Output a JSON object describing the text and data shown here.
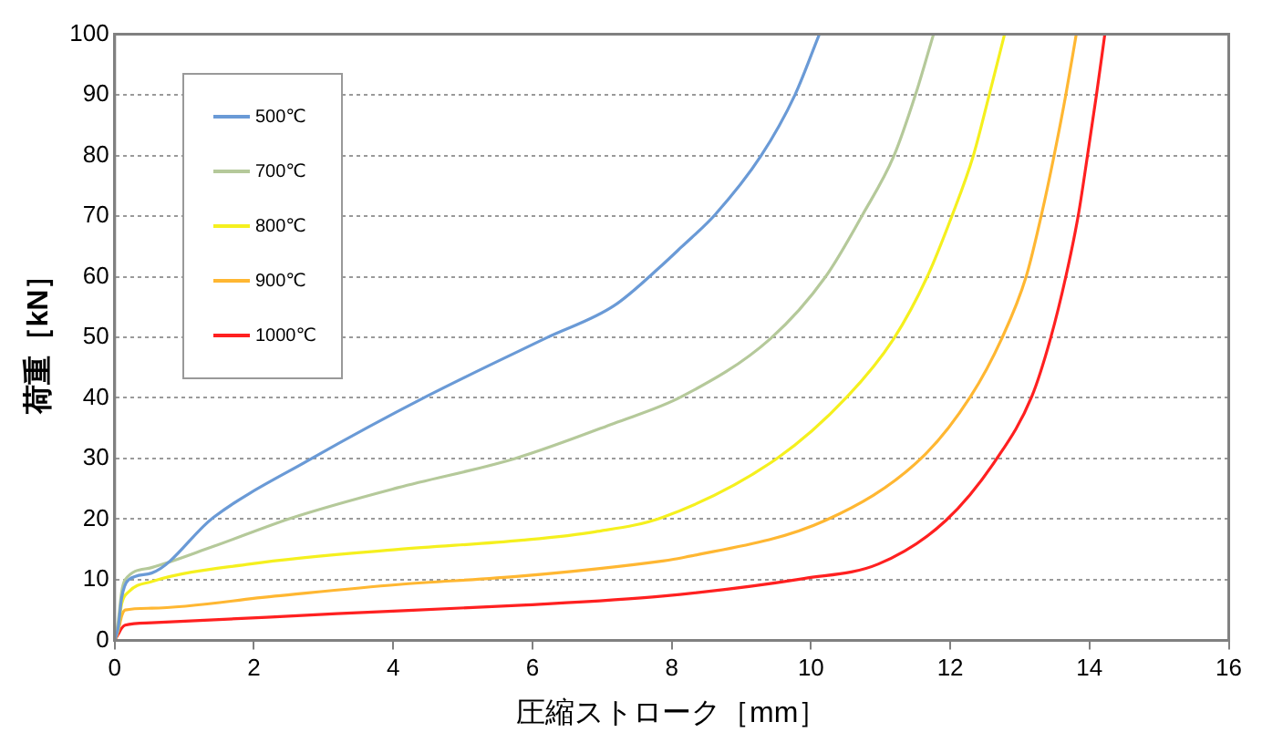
{
  "chart_data": {
    "type": "line",
    "xlabel": "圧縮ストローク［mm］",
    "ylabel": "荷重［kN］",
    "xlim": [
      0,
      16
    ],
    "xticks": [
      0,
      2,
      4,
      6,
      8,
      10,
      12,
      14,
      16
    ],
    "ylim": [
      0,
      100
    ],
    "yticks": [
      0,
      10,
      20,
      30,
      40,
      50,
      60,
      70,
      80,
      90,
      100
    ],
    "grid": "y",
    "legend": "top left",
    "series": [
      {
        "name": "500℃",
        "color": "#6a9ad6",
        "x": [
          0,
          0.05,
          0.1,
          0.2,
          0.53,
          1.42,
          2.83,
          4.47,
          6.2,
          7.17,
          7.87,
          8.14,
          8.62,
          9.28,
          9.77,
          10.12
        ],
        "values": [
          0,
          2,
          7,
          10,
          11.1,
          20.3,
          30,
          40.2,
          49.9,
          55.2,
          62,
          64.9,
          70.2,
          79.9,
          90,
          100
        ]
      },
      {
        "name": "700℃",
        "color": "#b5c99a",
        "x": [
          0,
          0.05,
          0.1,
          0.15,
          0.53,
          1.42,
          2.57,
          4.07,
          5.75,
          7.17,
          8.14,
          9.42,
          10.21,
          10.74,
          11.19,
          11.5,
          11.76
        ],
        "values": [
          0,
          3,
          8,
          10,
          12,
          15.5,
          20.3,
          25.2,
          30,
          35.8,
          40.2,
          49.8,
          60,
          70.2,
          79.9,
          90,
          100
        ]
      },
      {
        "name": "800℃",
        "color": "#f5f01e",
        "x": [
          0,
          0.05,
          0.1,
          0.2,
          0.53,
          1.95,
          4.07,
          5.84,
          6.9,
          7.87,
          9.51,
          10.52,
          11.19,
          11.67,
          12.03,
          12.33,
          12.56,
          12.78
        ],
        "values": [
          0,
          2,
          6,
          8,
          9.7,
          12.6,
          15,
          16.5,
          17.9,
          20.3,
          30,
          40.2,
          49.8,
          60,
          70.2,
          79.9,
          90,
          100
        ]
      },
      {
        "name": "900℃",
        "color": "#ffb732",
        "x": [
          0,
          0.05,
          0.1,
          0.15,
          0.53,
          2.3,
          4.07,
          5.84,
          7.87,
          8.14,
          10.21,
          11.58,
          12.29,
          12.74,
          13.09,
          13.31,
          13.49,
          13.66,
          13.81
        ],
        "values": [
          0,
          1.5,
          4,
          5,
          5.3,
          7.3,
          9.2,
          10.6,
          13.1,
          13.6,
          19.8,
          30,
          40.2,
          49.8,
          60,
          70.2,
          79.9,
          90,
          100
        ]
      },
      {
        "name": "1000℃",
        "color": "#ff2020",
        "x": [
          0,
          0.05,
          0.1,
          0.15,
          0.53,
          3.19,
          5.84,
          7.87,
          9.9,
          10.97,
          11.94,
          12.67,
          13.17,
          13.44,
          13.66,
          13.84,
          13.97,
          14.1,
          14.22
        ],
        "values": [
          0,
          1,
          2,
          2.5,
          2.9,
          4.4,
          5.8,
          7.3,
          10.2,
          12.6,
          19.8,
          30,
          40.2,
          49.8,
          60,
          70.2,
          79.9,
          90,
          100
        ]
      }
    ]
  }
}
